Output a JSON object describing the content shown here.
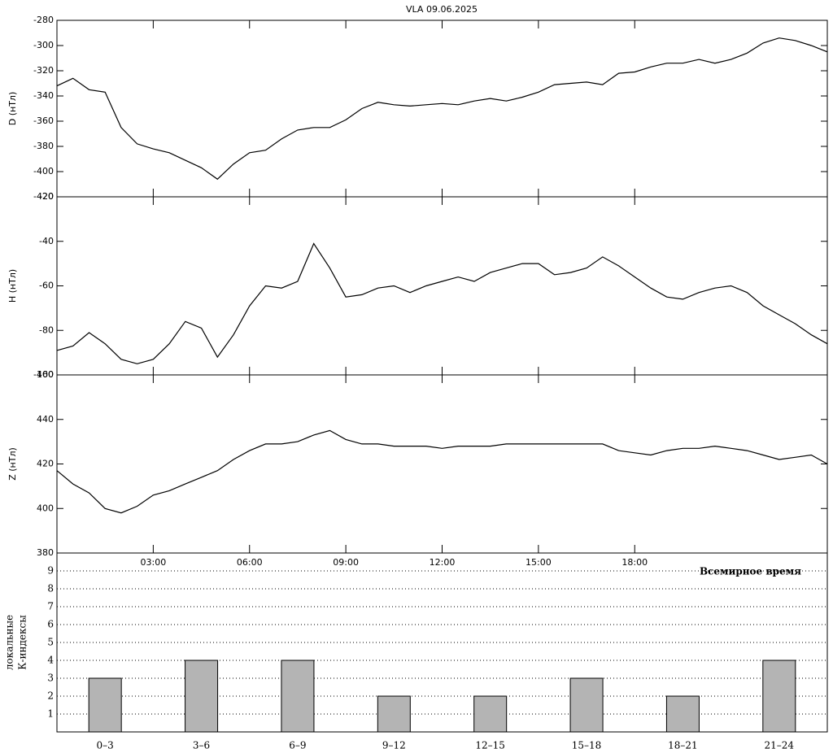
{
  "title": "VLA   09.06.2025",
  "chart_data": [
    {
      "type": "line",
      "ylabel": "D (нТл)",
      "color": "#000000",
      "xlim": [
        0,
        24
      ],
      "ylim": [
        -420,
        -280
      ],
      "yticks": [
        -420,
        -400,
        -380,
        -360,
        -340,
        -320,
        -300,
        -280
      ],
      "x": [
        0,
        0.5,
        1,
        1.5,
        2,
        2.5,
        3,
        3.5,
        4,
        4.5,
        5,
        5.5,
        6,
        6.5,
        7,
        7.5,
        8,
        8.5,
        9,
        9.5,
        10,
        10.5,
        11,
        11.5,
        12,
        12.5,
        13,
        13.5,
        14,
        14.5,
        15,
        15.5,
        16,
        16.5,
        17,
        17.5,
        18,
        18.5,
        19,
        19.5,
        20,
        20.5,
        21,
        21.5,
        22,
        22.5,
        23,
        23.5,
        24
      ],
      "values": [
        -332,
        -326,
        -335,
        -337,
        -365,
        -378,
        -382,
        -385,
        -391,
        -397,
        -406,
        -394,
        -385,
        -383,
        -374,
        -367,
        -365,
        -365,
        -359,
        -350,
        -345,
        -347,
        -348,
        -347,
        -346,
        -347,
        -344,
        -342,
        -344,
        -341,
        -337,
        -331,
        -330,
        -329,
        -331,
        -322,
        -321,
        -317,
        -314,
        -314,
        -311,
        -314,
        -311,
        -306,
        -298,
        -294,
        -296,
        -300,
        -305
      ]
    },
    {
      "type": "line",
      "ylabel": "H (нТл)",
      "color": "#000000",
      "xlim": [
        0,
        24
      ],
      "ylim": [
        -100,
        -20
      ],
      "yticks": [
        -100,
        -80,
        -60,
        -40,
        -20
      ],
      "x": [
        0,
        0.5,
        1,
        1.5,
        2,
        2.5,
        3,
        3.5,
        4,
        4.5,
        5,
        5.5,
        6,
        6.5,
        7,
        7.5,
        8,
        8.5,
        9,
        9.5,
        10,
        10.5,
        11,
        11.5,
        12,
        12.5,
        13,
        13.5,
        14,
        14.5,
        15,
        15.5,
        16,
        16.5,
        17,
        17.5,
        18,
        18.5,
        19,
        19.5,
        20,
        20.5,
        21,
        21.5,
        22,
        22.5,
        23,
        23.5,
        24
      ],
      "values": [
        -89,
        -87,
        -81,
        -86,
        -93,
        -95,
        -93,
        -86,
        -76,
        -79,
        -92,
        -82,
        -69,
        -60,
        -61,
        -58,
        -41,
        -52,
        -65,
        -64,
        -61,
        -60,
        -63,
        -60,
        -58,
        -56,
        -58,
        -54,
        -52,
        -50,
        -50,
        -55,
        -54,
        -52,
        -47,
        -51,
        -56,
        -61,
        -65,
        -66,
        -63,
        -61,
        -60,
        -63,
        -69,
        -73,
        -77,
        -82,
        -86
      ]
    },
    {
      "type": "line",
      "ylabel": "Z (нТл)",
      "color": "#000000",
      "xlabel": "Всемирное время",
      "xlim": [
        0,
        24
      ],
      "ylim": [
        380,
        460
      ],
      "yticks": [
        380,
        400,
        420,
        440,
        460
      ],
      "xticks": [
        {
          "value": 3,
          "label": "03:00"
        },
        {
          "value": 6,
          "label": "06:00"
        },
        {
          "value": 9,
          "label": "09:00"
        },
        {
          "value": 12,
          "label": "12:00"
        },
        {
          "value": 15,
          "label": "15:00"
        },
        {
          "value": 18,
          "label": "18:00"
        }
      ],
      "x": [
        0,
        0.5,
        1,
        1.5,
        2,
        2.5,
        3,
        3.5,
        4,
        4.5,
        5,
        5.5,
        6,
        6.5,
        7,
        7.5,
        8,
        8.5,
        9,
        9.5,
        10,
        10.5,
        11,
        11.5,
        12,
        12.5,
        13,
        13.5,
        14,
        14.5,
        15,
        15.5,
        16,
        16.5,
        17,
        17.5,
        18,
        18.5,
        19,
        19.5,
        20,
        20.5,
        21,
        21.5,
        22,
        22.5,
        23,
        23.5,
        24
      ],
      "values": [
        417,
        411,
        407,
        400,
        398,
        401,
        406,
        408,
        411,
        414,
        417,
        422,
        426,
        429,
        429,
        430,
        433,
        435,
        431,
        429,
        429,
        428,
        428,
        428,
        427,
        428,
        428,
        428,
        429,
        429,
        429,
        429,
        429,
        429,
        429,
        426,
        425,
        424,
        426,
        427,
        427,
        428,
        427,
        426,
        424,
        422,
        423,
        424,
        420
      ]
    },
    {
      "type": "bar",
      "ylabel": [
        "локальные",
        "К-индексы"
      ],
      "color": "#b4b4b4",
      "grid": true,
      "ylim": [
        0,
        10
      ],
      "yticks": [
        1,
        2,
        3,
        4,
        5,
        6,
        7,
        8,
        9
      ],
      "categories": [
        "0–3",
        "3–6",
        "6–9",
        "9–12",
        "12–15",
        "15–18",
        "18–21",
        "21–24"
      ],
      "values": [
        3,
        4,
        4,
        2,
        2,
        3,
        2,
        4
      ]
    }
  ]
}
